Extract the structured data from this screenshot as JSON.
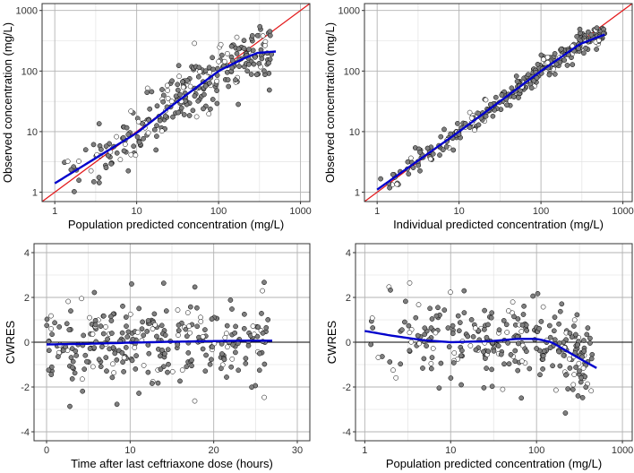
{
  "colors": {
    "panel_border": "#333333",
    "grid_major": "#b3b3b3",
    "grid_minor": "#dedede",
    "identity_line": "#e31a1c",
    "smooth_line": "#0000cc",
    "zero_line": "#000000",
    "point_filled": "#7f7f7f",
    "point_open": "#ffffff"
  },
  "chart_data": [
    {
      "id": "obs-vs-pred",
      "type": "scatter",
      "xscale": "log10",
      "yscale": "log10",
      "xlim": [
        0.7,
        1300
      ],
      "ylim": [
        0.7,
        1300
      ],
      "xticks": [
        1,
        10,
        100,
        1000
      ],
      "xticklabels": [
        "1",
        "10",
        "100",
        "1000"
      ],
      "yticks": [
        1,
        10,
        100,
        1000
      ],
      "yticklabels": [
        "1",
        "10",
        "100",
        "1000"
      ],
      "xlabel": "Population predicted concentration (mg/L)",
      "ylabel": "Observed concentration (mg/L)",
      "grid": true,
      "reference_line": {
        "type": "identity",
        "color": "red"
      },
      "smooth": {
        "x": [
          1,
          3,
          10,
          30,
          100,
          200,
          300,
          500
        ],
        "y": [
          1.4,
          3.5,
          9.5,
          30,
          100,
          160,
          200,
          210
        ]
      },
      "points": {
        "n": 280,
        "x_range": [
          1.1,
          450
        ],
        "spread_log10": 0.24,
        "open_fraction": 0.2,
        "seed": 11
      }
    },
    {
      "id": "obs-vs-ipred",
      "type": "scatter",
      "xscale": "log10",
      "yscale": "log10",
      "xlim": [
        0.7,
        1300
      ],
      "ylim": [
        0.7,
        1300
      ],
      "xticks": [
        1,
        10,
        100,
        1000
      ],
      "xticklabels": [
        "1",
        "10",
        "100",
        "1000"
      ],
      "yticks": [
        1,
        10,
        100,
        1000
      ],
      "yticklabels": [
        "1",
        "10",
        "100",
        "1000"
      ],
      "xlabel": "Individual predicted concentration (mg/L)",
      "ylabel": "Observed concentration (mg/L)",
      "grid": true,
      "reference_line": {
        "type": "identity",
        "color": "red"
      },
      "smooth": {
        "x": [
          1,
          10,
          100,
          300,
          600
        ],
        "y": [
          1.1,
          10,
          100,
          280,
          400
        ]
      },
      "points": {
        "n": 280,
        "x_range": [
          1.0,
          600
        ],
        "spread_log10": 0.09,
        "open_fraction": 0.2,
        "seed": 23
      }
    },
    {
      "id": "cwres-vs-time",
      "type": "scatter",
      "xscale": "linear",
      "yscale": "linear",
      "xlim": [
        -1.5,
        31.5
      ],
      "ylim": [
        -4.4,
        4.4
      ],
      "xticks": [
        0,
        10,
        20,
        30
      ],
      "xticklabels": [
        "0",
        "10",
        "20",
        "30"
      ],
      "yticks": [
        -4,
        -2,
        0,
        2,
        4
      ],
      "yticklabels": [
        "-4",
        "-2",
        "0",
        "2",
        "4"
      ],
      "xlabel": "Time after last ceftriaxone dose (hours)",
      "ylabel": "CWRES",
      "grid": true,
      "reference_line": {
        "type": "hline",
        "y": 0
      },
      "smooth": {
        "x": [
          0,
          5,
          10,
          15,
          20,
          24,
          27
        ],
        "y": [
          -0.1,
          -0.07,
          -0.02,
          0.02,
          0.05,
          0.07,
          0.07
        ]
      },
      "points": {
        "n": 285,
        "x_range": [
          0,
          26.5
        ],
        "spread": 0.95,
        "open_fraction": 0.2,
        "seed": 37
      }
    },
    {
      "id": "cwres-vs-pred",
      "type": "scatter",
      "xscale": "log10",
      "yscale": "linear",
      "xlim": [
        0.78,
        1300
      ],
      "ylim": [
        -4.4,
        4.4
      ],
      "xticks": [
        1,
        10,
        100,
        1000
      ],
      "xticklabels": [
        "1",
        "10",
        "100",
        "1000"
      ],
      "yticks": [
        -4,
        -2,
        0,
        2,
        4
      ],
      "yticklabels": [
        "-4",
        "-2",
        "0",
        "2",
        "4"
      ],
      "xlabel": "Population predicted concentration (mg/L)",
      "ylabel": "CWRES",
      "grid": true,
      "reference_line": {
        "type": "hline",
        "y": 0
      },
      "smooth": {
        "x": [
          1,
          2,
          5,
          10,
          30,
          60,
          100,
          150,
          250,
          400,
          500
        ],
        "y": [
          0.5,
          0.3,
          0.08,
          0.0,
          0.05,
          0.15,
          0.15,
          0.0,
          -0.5,
          -0.95,
          -1.15
        ]
      },
      "points": {
        "n": 280,
        "x_range": [
          1.0,
          450
        ],
        "spread": 0.95,
        "open_fraction": 0.2,
        "seed": 53
      }
    }
  ]
}
